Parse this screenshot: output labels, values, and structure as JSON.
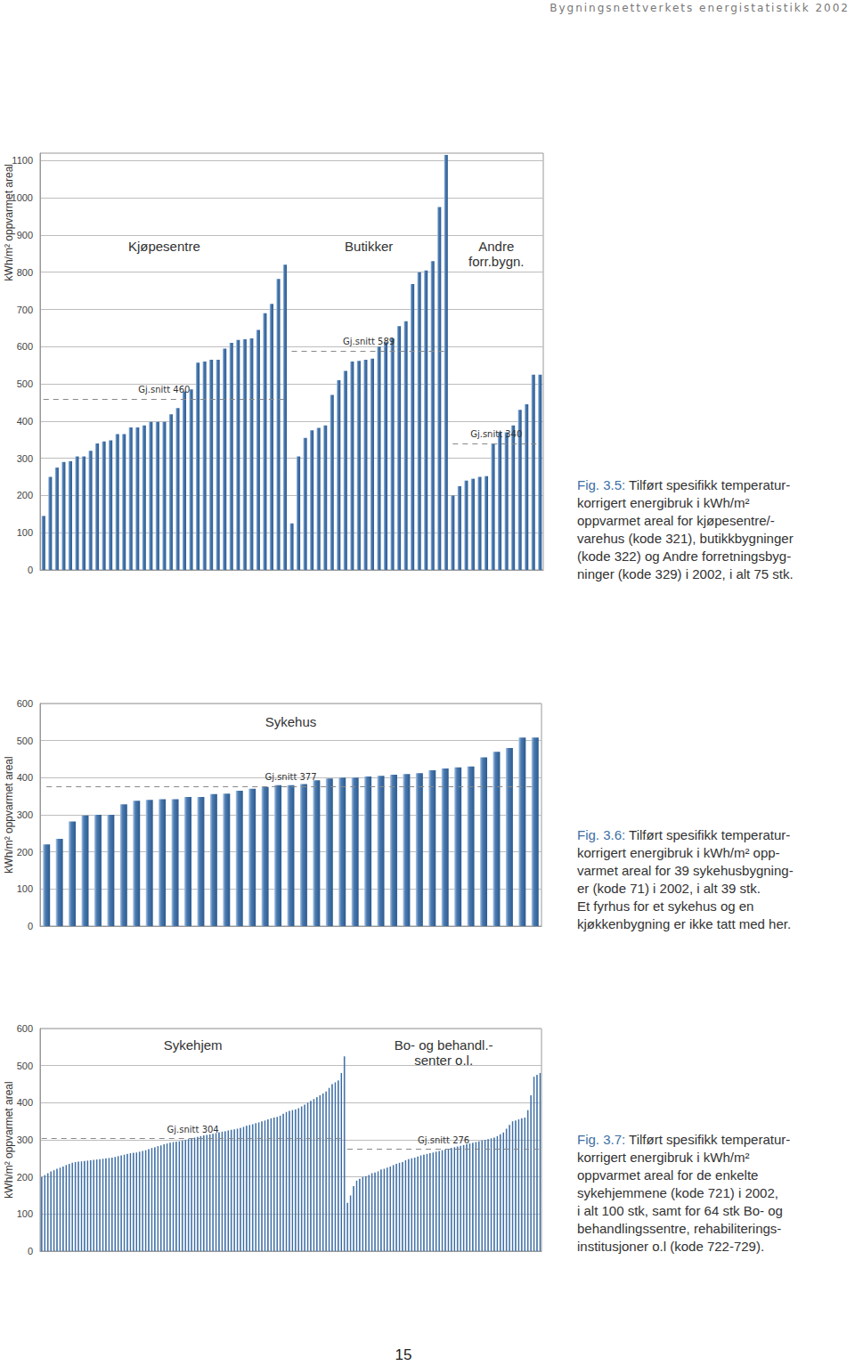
{
  "header": "Bygningsnettverkets energistatistikk 2002",
  "page_number": 15,
  "chart_data": [
    {
      "type": "bar",
      "ylabel": "kWh/m² oppvarmet areal",
      "ylim": [
        0,
        1120
      ],
      "yticks": [
        0,
        100,
        200,
        300,
        400,
        500,
        600,
        700,
        800,
        900,
        1000,
        1100
      ],
      "grid": true,
      "tick_labels": "y",
      "color": "#4a7ab0",
      "series": [
        {
          "label": [
            "Kjøpesentre"
          ],
          "mean": 460,
          "mean_label": "Gj.snitt 460",
          "values": [
            145,
            250,
            275,
            290,
            292,
            305,
            305,
            320,
            340,
            345,
            348,
            365,
            365,
            383,
            383,
            388,
            398,
            398,
            398,
            418,
            435,
            480,
            485,
            557,
            560,
            565,
            565,
            595,
            610,
            618,
            620,
            622,
            645,
            690,
            715,
            782,
            820
          ]
        },
        {
          "label": [
            "Butikker"
          ],
          "mean": 589,
          "mean_label": "Gj.snitt 589",
          "values": [
            125,
            305,
            355,
            375,
            382,
            388,
            470,
            510,
            535,
            560,
            562,
            565,
            568,
            600,
            612,
            622,
            655,
            668,
            768,
            800,
            805,
            830,
            975,
            1115
          ]
        },
        {
          "label": [
            "Andre",
            "forr.bygn."
          ],
          "mean": 340,
          "mean_label": "Gj.snitt 340",
          "values": [
            200,
            225,
            240,
            245,
            250,
            252,
            340,
            370,
            370,
            388,
            430,
            445,
            525,
            525
          ]
        }
      ],
      "caption": {
        "label": "Fig. 3.5:",
        "lines": [
          "Tilført spesifikk temperatur-",
          "korrigert energibruk i kWh/m²",
          "oppvarmet areal for kjøpesentre/-",
          "varehus (kode 321), butikkbygninger",
          "(kode 322) og Andre forretningsbyg-",
          "ninger (kode 329) i 2002, i alt 75 stk."
        ]
      }
    },
    {
      "type": "bar",
      "ylabel": "kWh/m² oppvarmet areal",
      "ylim": [
        0,
        600
      ],
      "yticks": [
        0,
        100,
        200,
        300,
        400,
        500,
        600
      ],
      "grid": true,
      "tick_labels": "y",
      "color": "#4a7ab0",
      "series": [
        {
          "label": [
            "Sykehus"
          ],
          "mean": 377,
          "mean_label": "Gj.snitt 377",
          "values": [
            220,
            235,
            282,
            298,
            300,
            300,
            328,
            338,
            340,
            342,
            342,
            348,
            348,
            356,
            357,
            365,
            370,
            375,
            380,
            380,
            383,
            393,
            398,
            400,
            400,
            403,
            405,
            408,
            410,
            412,
            420,
            425,
            428,
            430,
            455,
            470,
            480,
            508,
            508
          ]
        }
      ],
      "caption": {
        "label": "Fig. 3.6:",
        "lines": [
          "Tilført spesifikk temperatur-",
          "korrigert energibruk i kWh/m² opp-",
          "varmet areal for 39 sykehusbygning-",
          "er (kode 71) i 2002, i alt 39 stk.",
          "Et fyrhus for et sykehus og en",
          "kjøkkenbygning er ikke tatt med her."
        ]
      }
    },
    {
      "type": "bar",
      "ylabel": "kWh/m² oppvarmet areal",
      "ylim": [
        0,
        600
      ],
      "yticks": [
        0,
        100,
        200,
        300,
        400,
        500,
        600
      ],
      "grid": true,
      "tick_labels": "y",
      "color": "#4a7ab0",
      "series": [
        {
          "label": [
            "Sykehjem"
          ],
          "mean": 304,
          "mean_label": "Gj.snitt 304",
          "values": [
            200,
            205,
            210,
            215,
            218,
            222,
            225,
            228,
            232,
            235,
            238,
            240,
            241,
            242,
            243,
            244,
            245,
            246,
            247,
            248,
            249,
            250,
            251,
            252,
            254,
            256,
            258,
            260,
            262,
            264,
            265,
            266,
            268,
            270,
            272,
            275,
            278,
            280,
            283,
            285,
            288,
            290,
            292,
            294,
            295,
            296,
            298,
            300,
            302,
            304,
            306,
            308,
            310,
            312,
            313,
            315,
            316,
            318,
            320,
            322,
            323,
            325,
            327,
            328,
            330,
            332,
            335,
            338,
            340,
            342,
            345,
            347,
            350,
            352,
            355,
            358,
            360,
            362,
            365,
            370,
            375,
            378,
            380,
            382,
            385,
            390,
            395,
            400,
            405,
            410,
            415,
            420,
            425,
            430,
            440,
            450,
            455,
            460,
            480,
            525
          ]
        },
        {
          "label": [
            "Bo- og behandl.-",
            "senter o.l."
          ],
          "mean": 276,
          "mean_label": "Gj.snitt 276",
          "values": [
            130,
            150,
            175,
            190,
            195,
            200,
            202,
            205,
            210,
            212,
            215,
            220,
            222,
            225,
            228,
            232,
            235,
            238,
            240,
            245,
            248,
            250,
            252,
            255,
            258,
            260,
            262,
            264,
            266,
            268,
            270,
            272,
            274,
            276,
            278,
            280,
            282,
            284,
            286,
            288,
            290,
            292,
            294,
            296,
            298,
            300,
            302,
            304,
            306,
            310,
            315,
            320,
            330,
            340,
            350,
            352,
            355,
            358,
            360,
            380,
            420,
            470,
            475,
            480
          ]
        }
      ],
      "caption": {
        "label": "Fig. 3.7:",
        "lines": [
          "Tilført spesifikk temperatur-",
          "korrigert energibruk i kWh/m²",
          "oppvarmet areal for  de enkelte",
          "sykehjemmene (kode 721) i 2002,",
          "i alt 100 stk, samt for 64 stk Bo- og",
          "behandlingssentre, rehabiliterings-",
          "institusjoner o.l (kode 722-729)."
        ]
      }
    }
  ]
}
